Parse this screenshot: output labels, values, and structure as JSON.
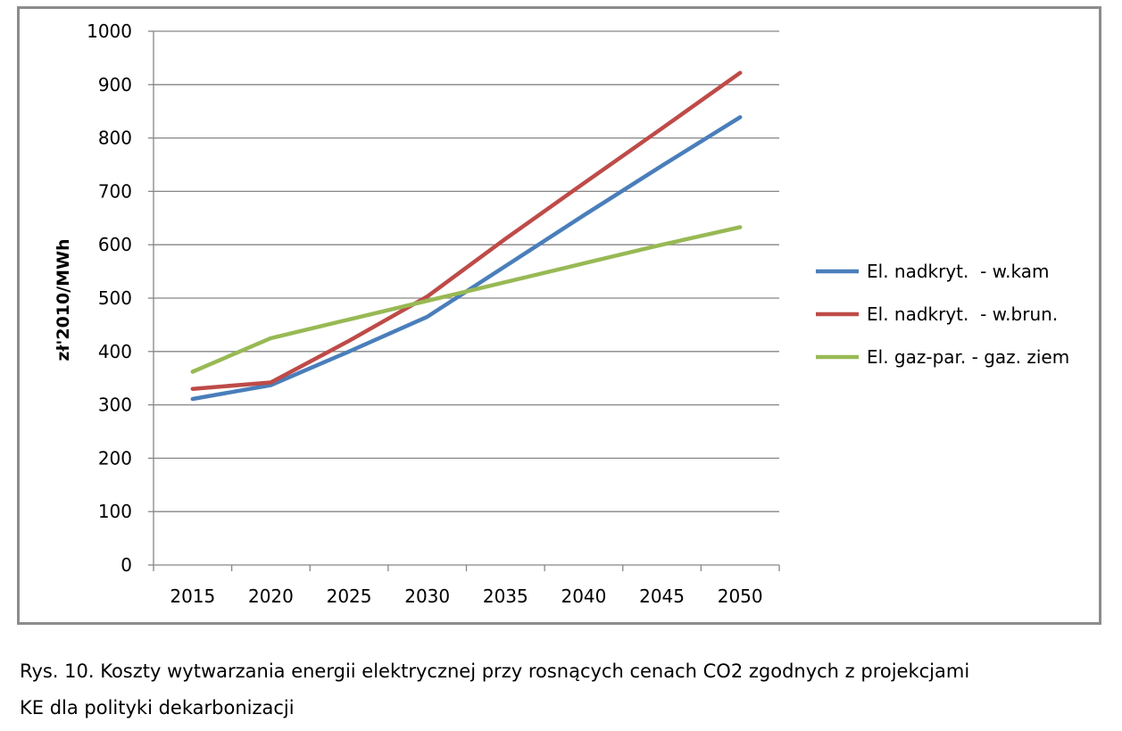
{
  "chart_data": {
    "type": "line",
    "x": [
      2015,
      2020,
      2025,
      2030,
      2035,
      2040,
      2045,
      2050
    ],
    "series": [
      {
        "name": "El. nadkryt.  - w.kam",
        "color": "#4a7ebb",
        "values": [
          311,
          337,
          400,
          465,
          560,
          655,
          748,
          839
        ]
      },
      {
        "name": "El. nadkryt.  - w.brun.",
        "color": "#be4b48",
        "values": [
          330,
          342,
          420,
          503,
          611,
          715,
          818,
          922
        ]
      },
      {
        "name": "El. gaz-par. - gaz. ziem",
        "color": "#98b954",
        "values": [
          362,
          425,
          460,
          495,
          530,
          565,
          600,
          633
        ]
      }
    ],
    "xlabel": "",
    "ylabel": "zł'2010/MWh",
    "ylim": [
      0,
      1000
    ],
    "yticks": [
      0,
      100,
      200,
      300,
      400,
      500,
      600,
      700,
      800,
      900,
      1000
    ],
    "grid": true,
    "legend": "right"
  },
  "caption": {
    "line1": "Rys. 10. Koszty wytwarzania energii elektrycznej przy rosnących cenach CO2 zgodnych z projekcjami",
    "line2": "KE dla polityki dekarbonizacji"
  }
}
